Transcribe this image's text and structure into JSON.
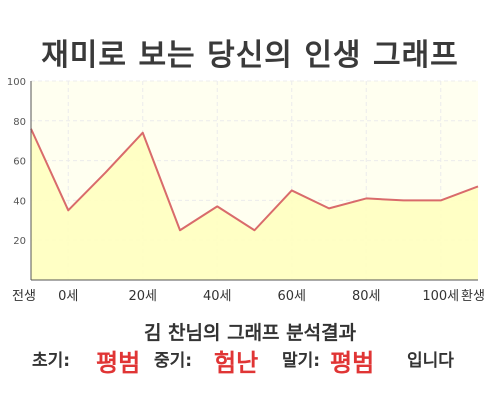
{
  "title": "재미로 보는 당신의 인생 그래프",
  "chart_data": {
    "type": "area",
    "x": [
      "전생",
      "0세",
      "10세",
      "20세",
      "30세",
      "40세",
      "50세",
      "60세",
      "70세",
      "80세",
      "90세",
      "100세",
      "환생"
    ],
    "values": [
      76,
      35,
      54,
      74,
      25,
      37,
      25,
      45,
      36,
      41,
      40,
      40,
      47
    ],
    "tick_labels": [
      "전생",
      "0세",
      "20세",
      "40세",
      "60세",
      "80세",
      "100세",
      "환생"
    ],
    "y_ticks": [
      20,
      40,
      60,
      80,
      100
    ],
    "ylim": [
      0,
      100
    ],
    "grid": true,
    "colors": {
      "line": "#d96b6b",
      "fill": "#ffffc0",
      "plot_bg": "#fffff0",
      "grid": "#ececec"
    }
  },
  "result": {
    "subtitle": "김 찬님의 그래프 분석결과",
    "early_label": "초기:",
    "early_value": "평범",
    "mid_label": "중기:",
    "mid_value": "험난",
    "late_label": "말기:",
    "late_value": "평범",
    "suffix": "입니다"
  }
}
